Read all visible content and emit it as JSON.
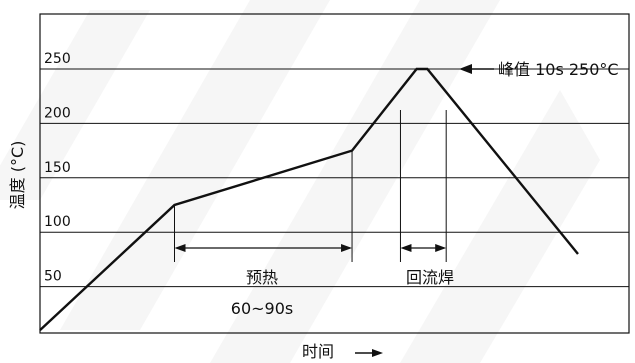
{
  "colors": {
    "line": "#111111",
    "grid": "#111111",
    "watermark": "#eeeeee",
    "background": "#ffffff"
  },
  "chart_data": {
    "type": "line",
    "title": "",
    "xlabel": "时间",
    "ylabel": "温度 (°C)",
    "ylim": [
      0,
      250
    ],
    "xlim": [
      0,
      100
    ],
    "yticks": [
      50,
      100,
      150,
      200,
      250
    ],
    "grid": true,
    "series": [
      {
        "x": [
          0,
          25,
          58,
          70,
          72,
          100
        ],
        "y": [
          10,
          125,
          175,
          250,
          250,
          80
        ]
      }
    ],
    "annotations": {
      "peak": "峰值 10s 250°C",
      "preheat": "预热",
      "preheat_time": "60~90s",
      "reflow": "回流焊"
    }
  }
}
